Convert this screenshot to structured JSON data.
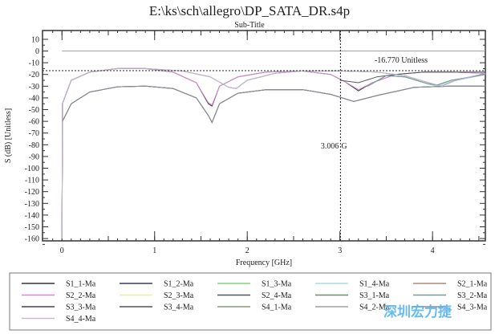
{
  "chart_data": {
    "type": "line",
    "title": "E:\\ks\\sch\\allegro\\DP_SATA_DR.s4p",
    "subtitle": "Sub-Title",
    "xlabel": "Frequency [GHz]",
    "ylabel": "S (dB) [Unitless]",
    "xlim": [
      -0.21,
      4.57
    ],
    "ylim": [
      -162,
      17.5
    ],
    "xticks": [
      0,
      1,
      2,
      3,
      4
    ],
    "yticks": [
      10,
      0,
      -10,
      -20,
      -30,
      -40,
      -50,
      -60,
      -70,
      -80,
      -90,
      -100,
      -110,
      -120,
      -130,
      -140,
      -150,
      -160
    ],
    "grid": false,
    "legend_placement": "bottom",
    "markers": {
      "horizontal": {
        "value": -16.77,
        "label": "-16.770 Unitless"
      },
      "vertical": {
        "value": 3.006,
        "label": "3.006 G"
      }
    },
    "series": [
      {
        "name": "S1_1-Ma",
        "color": "#333333",
        "points": [
          [
            0,
            -160
          ],
          [
            0.005,
            -45
          ],
          [
            0.1,
            -25
          ],
          [
            0.3,
            -18
          ],
          [
            0.6,
            -15
          ],
          [
            0.9,
            -15
          ],
          [
            1.2,
            -18
          ],
          [
            1.45,
            -27
          ],
          [
            1.58,
            -45
          ],
          [
            1.62,
            -47
          ],
          [
            1.7,
            -30
          ],
          [
            1.9,
            -22
          ],
          [
            2.2,
            -18
          ],
          [
            2.6,
            -17
          ],
          [
            2.9,
            -20
          ],
          [
            3.05,
            -26
          ],
          [
            3.2,
            -34
          ],
          [
            3.35,
            -27
          ],
          [
            3.6,
            -20
          ],
          [
            3.9,
            -18
          ],
          [
            4.2,
            -18
          ],
          [
            4.57,
            -19
          ]
        ]
      },
      {
        "name": "S1_2-Ma",
        "color": "#3a3a5a",
        "points": [
          [
            0,
            -160
          ],
          [
            0.005,
            -60
          ],
          [
            0.1,
            -45
          ],
          [
            0.3,
            -35
          ],
          [
            0.6,
            -30.5
          ],
          [
            0.9,
            -30
          ],
          [
            1.2,
            -32
          ],
          [
            1.45,
            -40
          ],
          [
            1.58,
            -55
          ],
          [
            1.62,
            -61
          ],
          [
            1.7,
            -45
          ],
          [
            1.9,
            -36
          ],
          [
            2.2,
            -33
          ],
          [
            2.6,
            -33
          ],
          [
            2.9,
            -37
          ],
          [
            3.15,
            -43
          ],
          [
            3.4,
            -38
          ],
          [
            3.8,
            -31
          ],
          [
            4.2,
            -30
          ],
          [
            4.57,
            -30
          ]
        ]
      },
      {
        "name": "S1_3-Ma",
        "color": "#7fd67f",
        "points": [
          [
            3.3,
            -30
          ],
          [
            3.5,
            -21
          ],
          [
            3.7,
            -22
          ],
          [
            3.95,
            -28
          ],
          [
            4.05,
            -30
          ],
          [
            4.2,
            -26
          ],
          [
            4.57,
            -20
          ]
        ]
      },
      {
        "name": "S1_4-Ma",
        "color": "#a8dde0",
        "points": [
          [
            3.3,
            -30
          ],
          [
            3.5,
            -21
          ],
          [
            3.7,
            -22
          ],
          [
            3.95,
            -28
          ],
          [
            4.05,
            -30
          ],
          [
            4.2,
            -26
          ],
          [
            4.57,
            -20
          ]
        ]
      },
      {
        "name": "S2_1-Ma",
        "color": "#b08a78",
        "points": [
          [
            0,
            -160
          ],
          [
            0.005,
            -60
          ],
          [
            0.1,
            -45
          ],
          [
            0.3,
            -35
          ],
          [
            0.6,
            -30.5
          ],
          [
            0.9,
            -30
          ],
          [
            1.2,
            -32
          ],
          [
            1.45,
            -40
          ],
          [
            1.58,
            -55
          ],
          [
            1.62,
            -61
          ],
          [
            1.7,
            -45
          ],
          [
            1.9,
            -36
          ],
          [
            2.2,
            -33
          ],
          [
            2.6,
            -33
          ],
          [
            2.9,
            -37
          ],
          [
            3.15,
            -43
          ],
          [
            3.4,
            -38
          ],
          [
            3.8,
            -31
          ],
          [
            4.2,
            -30
          ],
          [
            4.57,
            -30
          ]
        ]
      },
      {
        "name": "S2_2-Ma",
        "color": "#d48ad4",
        "points": [
          [
            0,
            -160
          ],
          [
            0.005,
            -45
          ],
          [
            0.1,
            -25
          ],
          [
            0.3,
            -18
          ],
          [
            0.6,
            -15
          ],
          [
            0.9,
            -15
          ],
          [
            1.2,
            -18
          ],
          [
            1.45,
            -27
          ],
          [
            1.58,
            -44
          ],
          [
            1.62,
            -46
          ],
          [
            1.7,
            -30
          ],
          [
            1.9,
            -22
          ],
          [
            2.2,
            -18
          ],
          [
            2.6,
            -17
          ],
          [
            2.9,
            -20
          ],
          [
            3.05,
            -26
          ],
          [
            3.2,
            -33
          ],
          [
            3.35,
            -27
          ],
          [
            3.6,
            -20
          ],
          [
            3.9,
            -18
          ],
          [
            4.2,
            -18
          ],
          [
            4.57,
            -19
          ]
        ]
      },
      {
        "name": "S2_3-Ma",
        "color": "#e8f0a0",
        "points": [
          [
            0,
            -160
          ],
          [
            0.005,
            -60
          ],
          [
            0.1,
            -45
          ],
          [
            0.3,
            -35
          ],
          [
            0.6,
            -30.5
          ],
          [
            0.9,
            -30
          ],
          [
            1.2,
            -32
          ],
          [
            1.45,
            -40
          ],
          [
            1.58,
            -55
          ],
          [
            1.62,
            -61
          ],
          [
            1.7,
            -45
          ],
          [
            1.9,
            -36
          ],
          [
            2.2,
            -33
          ],
          [
            2.6,
            -33
          ],
          [
            2.9,
            -37
          ],
          [
            3.15,
            -43
          ],
          [
            3.4,
            -38
          ],
          [
            3.8,
            -31
          ],
          [
            4.2,
            -30
          ],
          [
            4.57,
            -30
          ]
        ]
      },
      {
        "name": "S2_4-Ma",
        "color": "#555560",
        "points": [
          [
            3.0,
            -25
          ],
          [
            3.2,
            -27
          ],
          [
            3.4,
            -22
          ],
          [
            3.6,
            -20
          ],
          [
            3.9,
            -18
          ],
          [
            4.57,
            -18
          ]
        ]
      },
      {
        "name": "S3_1-Ma",
        "color": "#6f8f6f",
        "points": [
          [
            3.3,
            -30
          ],
          [
            3.5,
            -21
          ],
          [
            3.7,
            -22
          ],
          [
            3.95,
            -28
          ],
          [
            4.05,
            -29
          ],
          [
            4.2,
            -25
          ],
          [
            4.57,
            -20
          ]
        ]
      },
      {
        "name": "S3_2-Ma",
        "color": "#7a9a9a",
        "points": [
          [
            3.3,
            -30
          ],
          [
            3.5,
            -21
          ],
          [
            3.7,
            -22
          ],
          [
            3.95,
            -28
          ],
          [
            4.05,
            -29
          ],
          [
            4.2,
            -25
          ],
          [
            4.57,
            -20
          ]
        ]
      },
      {
        "name": "S3_3-Ma",
        "color": "#4a4050",
        "points": [
          [
            0,
            -160
          ],
          [
            0.005,
            -45
          ],
          [
            0.1,
            -25
          ],
          [
            0.3,
            -18
          ],
          [
            0.6,
            -15
          ],
          [
            0.9,
            -15
          ],
          [
            1.3,
            -17
          ],
          [
            1.6,
            -22
          ],
          [
            1.8,
            -31
          ],
          [
            1.88,
            -32
          ],
          [
            2.0,
            -25
          ],
          [
            2.3,
            -19
          ],
          [
            2.6,
            -17
          ],
          [
            3.0,
            -17
          ],
          [
            3.4,
            -18
          ],
          [
            3.7,
            -21
          ],
          [
            4.0,
            -28
          ],
          [
            4.1,
            -30
          ],
          [
            4.25,
            -25
          ],
          [
            4.57,
            -19
          ]
        ]
      },
      {
        "name": "S3_4-Ma",
        "color": "#505060",
        "points": [
          [
            0,
            -160
          ],
          [
            0.005,
            -60
          ],
          [
            0.1,
            -45
          ],
          [
            0.3,
            -35
          ],
          [
            0.6,
            -30.5
          ],
          [
            0.9,
            -30
          ],
          [
            1.2,
            -32
          ],
          [
            1.45,
            -40
          ],
          [
            1.58,
            -55
          ],
          [
            1.62,
            -61
          ],
          [
            1.7,
            -45
          ],
          [
            1.9,
            -36
          ],
          [
            2.2,
            -33
          ],
          [
            2.6,
            -33
          ],
          [
            2.9,
            -37
          ],
          [
            3.15,
            -43
          ],
          [
            3.4,
            -38
          ],
          [
            3.8,
            -31
          ],
          [
            4.2,
            -30
          ],
          [
            4.57,
            -30
          ]
        ]
      },
      {
        "name": "S4_1-Ma",
        "color": "#8a9a70",
        "points": [
          [
            0,
            -160
          ],
          [
            0.005,
            -60
          ],
          [
            0.1,
            -45
          ],
          [
            0.3,
            -35
          ],
          [
            0.6,
            -30.5
          ],
          [
            0.9,
            -30
          ],
          [
            1.2,
            -32
          ],
          [
            1.45,
            -40
          ],
          [
            1.58,
            -55
          ],
          [
            1.62,
            -61
          ],
          [
            1.7,
            -45
          ],
          [
            1.9,
            -36
          ],
          [
            2.2,
            -33
          ],
          [
            2.6,
            -33
          ],
          [
            2.9,
            -37
          ],
          [
            3.15,
            -43
          ],
          [
            3.4,
            -38
          ],
          [
            3.8,
            -31
          ],
          [
            4.2,
            -30
          ],
          [
            4.57,
            -30
          ]
        ]
      },
      {
        "name": "S4_2-Ma",
        "color": "#a0a0a0",
        "points": [
          [
            0,
            0
          ],
          [
            4.57,
            0
          ]
        ]
      },
      {
        "name": "S4_3-Ma",
        "color": "#8a8aa0",
        "points": [
          [
            0,
            -160
          ],
          [
            0.005,
            -60
          ],
          [
            0.1,
            -45
          ],
          [
            0.3,
            -35
          ],
          [
            0.6,
            -30.5
          ],
          [
            0.9,
            -30
          ],
          [
            1.2,
            -32
          ],
          [
            1.45,
            -40
          ],
          [
            1.58,
            -55
          ],
          [
            1.62,
            -61
          ],
          [
            1.7,
            -45
          ],
          [
            1.9,
            -36
          ],
          [
            2.2,
            -33
          ],
          [
            2.6,
            -33
          ],
          [
            2.9,
            -37
          ],
          [
            3.15,
            -43
          ],
          [
            3.4,
            -38
          ],
          [
            3.8,
            -31
          ],
          [
            4.2,
            -30
          ],
          [
            4.57,
            -30
          ]
        ]
      },
      {
        "name": "S4_4-Ma",
        "color": "#c8b8d8",
        "points": [
          [
            0,
            -160
          ],
          [
            0.005,
            -45
          ],
          [
            0.1,
            -25
          ],
          [
            0.3,
            -18
          ],
          [
            0.6,
            -15
          ],
          [
            0.9,
            -15
          ],
          [
            1.3,
            -17
          ],
          [
            1.6,
            -22
          ],
          [
            1.8,
            -31
          ],
          [
            1.88,
            -32
          ],
          [
            2.0,
            -25
          ],
          [
            2.3,
            -19
          ],
          [
            2.6,
            -17
          ],
          [
            3.0,
            -17
          ],
          [
            3.4,
            -18
          ],
          [
            3.7,
            -21
          ],
          [
            4.0,
            -28
          ],
          [
            4.1,
            -30
          ],
          [
            4.25,
            -25
          ],
          [
            4.57,
            -19
          ]
        ]
      }
    ]
  },
  "watermark": "深圳宏力捷"
}
